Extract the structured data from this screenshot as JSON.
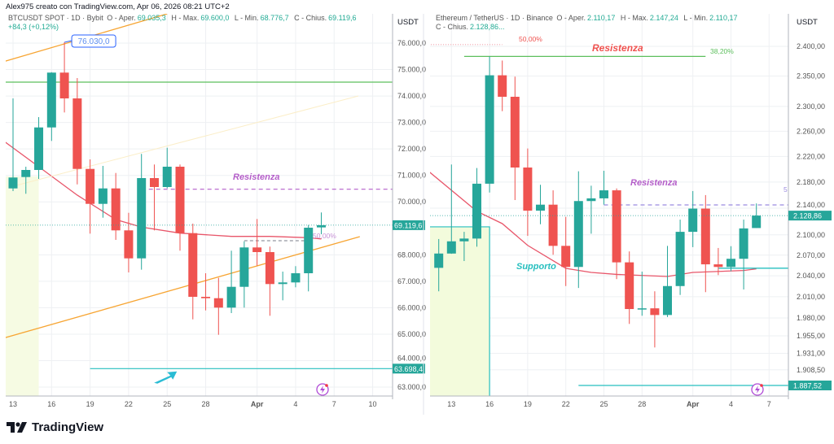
{
  "credit": "Alex975 creato con TradingView.com, Apr 06, 2026 08:21 UTC+2",
  "brand": {
    "name": "TradingView",
    "icon": "tradingview-logo-icon"
  },
  "colors": {
    "up": "#26a69a",
    "down": "#ef5350",
    "ma": "#e8566a",
    "grid": "#eef0f3",
    "axis": "#b2b5be",
    "resistance": "#b45ec9",
    "support": "#26bfbf",
    "trend": "#f7a533",
    "fib_green": "#5cbf5c"
  },
  "left_header": {
    "symbol": "BTCUSDT SPOT · 1D · Bybit",
    "o_label": "O - Aper.",
    "o": "69.035,3",
    "h_label": "H - Max.",
    "h": "69.600,0",
    "l_label": "L - Min.",
    "l": "68.776,7",
    "c_label": "C - Chius.",
    "c": "69.119,6",
    "change": "+84,3 (+0,12%)"
  },
  "right_header": {
    "symbol": "Ethereum / TetherUS · 1D · Binance",
    "o_label": "O - Aper.",
    "o": "2.110,17",
    "h_label": "H - Max.",
    "h": "2.147,24",
    "l_label": "L - Min.",
    "l": "2.110,17",
    "c_label": "C - Chius.",
    "c": "2.128,86..."
  },
  "chart_data": [
    {
      "type": "candlestick",
      "symbol": "BTCUSDT",
      "unit": "USDT",
      "interval": "1D",
      "y_scale": "linear",
      "ylim": [
        62700,
        77200
      ],
      "grid": true,
      "y_ticks": [
        "76.000,0",
        "75.000,0",
        "74.000,0",
        "73.000,0",
        "72.000,0",
        "71.000,0",
        "70.000,0",
        "68.000,0",
        "67.000,0",
        "66.000,0",
        "65.000,0",
        "64.000,0",
        "63.000,0"
      ],
      "x_ticks": [
        {
          "label": "13",
          "date": "2026-03-13"
        },
        {
          "label": "16",
          "date": "2026-03-16"
        },
        {
          "label": "19",
          "date": "2026-03-19"
        },
        {
          "label": "22",
          "date": "2026-03-22"
        },
        {
          "label": "25",
          "date": "2026-03-25"
        },
        {
          "label": "28",
          "date": "2026-03-28"
        },
        {
          "label": "Apr",
          "date": "2026-04-01"
        },
        {
          "label": "4",
          "date": "2026-04-04"
        },
        {
          "label": "7",
          "date": "2026-04-07"
        },
        {
          "label": "10",
          "date": "2026-04-10"
        }
      ],
      "candles": [
        {
          "date": "2026-03-13",
          "o": 70509,
          "h": 73910,
          "l": 70407,
          "c": 70920
        },
        {
          "date": "2026-03-14",
          "o": 70939,
          "h": 71329,
          "l": 70306,
          "c": 71206
        },
        {
          "date": "2026-03-15",
          "o": 71206,
          "h": 73203,
          "l": 70868,
          "c": 72813
        },
        {
          "date": "2026-03-16",
          "o": 72813,
          "h": 74900,
          "l": 72303,
          "c": 74885
        },
        {
          "date": "2026-03-17",
          "o": 74885,
          "h": 76030,
          "l": 73379,
          "c": 73910
        },
        {
          "date": "2026-03-18",
          "o": 73910,
          "h": 74679,
          "l": 70662,
          "c": 71246
        },
        {
          "date": "2026-03-19",
          "o": 71246,
          "h": 71606,
          "l": 68800,
          "c": 69925
        },
        {
          "date": "2026-03-20",
          "o": 69925,
          "h": 71360,
          "l": 69402,
          "c": 70509
        },
        {
          "date": "2026-03-21",
          "o": 70509,
          "h": 71093,
          "l": 68563,
          "c": 68923
        },
        {
          "date": "2026-03-22",
          "o": 68923,
          "h": 69587,
          "l": 67334,
          "c": 67866
        },
        {
          "date": "2026-03-23",
          "o": 67866,
          "h": 71812,
          "l": 67436,
          "c": 70899
        },
        {
          "date": "2026-03-24",
          "o": 70899,
          "h": 71412,
          "l": 68923,
          "c": 70561
        },
        {
          "date": "2026-03-25",
          "o": 70561,
          "h": 72045,
          "l": 70509,
          "c": 71329
        },
        {
          "date": "2026-03-26",
          "o": 71329,
          "h": 71412,
          "l": 68155,
          "c": 68819
        },
        {
          "date": "2026-03-27",
          "o": 68819,
          "h": 69178,
          "l": 65561,
          "c": 66412
        },
        {
          "date": "2026-03-28",
          "o": 66412,
          "h": 67303,
          "l": 65899,
          "c": 66360
        },
        {
          "date": "2026-03-29",
          "o": 66360,
          "h": 67128,
          "l": 64977,
          "c": 66004
        },
        {
          "date": "2026-03-30",
          "o": 66004,
          "h": 68155,
          "l": 65798,
          "c": 66790
        },
        {
          "date": "2026-03-31",
          "o": 66790,
          "h": 68511,
          "l": 66004,
          "c": 68278
        },
        {
          "date": "2026-04-01",
          "o": 68278,
          "h": 69353,
          "l": 67590,
          "c": 68102
        },
        {
          "date": "2026-04-02",
          "o": 68102,
          "h": 68309,
          "l": 65696,
          "c": 66895
        },
        {
          "date": "2026-04-03",
          "o": 66895,
          "h": 67365,
          "l": 66280,
          "c": 66956
        },
        {
          "date": "2026-04-04",
          "o": 66956,
          "h": 67571,
          "l": 66772,
          "c": 67303
        },
        {
          "date": "2026-04-05",
          "o": 67303,
          "h": 69126,
          "l": 66618,
          "c": 69024
        },
        {
          "date": "2026-04-06",
          "o": 69035.3,
          "h": 69600,
          "l": 68776.7,
          "c": 69119.6
        }
      ],
      "moving_average": [
        [
          "2026-03-12",
          72400
        ],
        [
          "2026-03-15",
          71329
        ],
        [
          "2026-03-18",
          70254
        ],
        [
          "2026-03-21",
          69332
        ],
        [
          "2026-03-23",
          69046
        ],
        [
          "2026-03-26",
          68819
        ],
        [
          "2026-03-30",
          68696
        ],
        [
          "2026-04-02",
          68696
        ],
        [
          "2026-04-05",
          68646
        ],
        [
          "2026-04-06",
          68600
        ]
      ],
      "annotations": {
        "upper_channel": {
          "from": [
            "2026-03-12",
            75262
          ],
          "to": [
            "2026-03-25",
            77106
          ]
        },
        "lower_channel": {
          "from": [
            "2026-03-12",
            64814
          ],
          "to": [
            "2026-04-09",
            68686
          ]
        },
        "green_level": 74525,
        "resistance": {
          "price": 70478,
          "from": "2026-03-23",
          "label": "Resistenza"
        },
        "fib_50": {
          "price": 68533,
          "from": "2026-03-31",
          "to": "2026-04-05",
          "label": "50,00%"
        },
        "support_line": {
          "price": 63698.4,
          "from": "2026-03-19"
        },
        "high_callout": {
          "date": "2026-03-17",
          "price": 76030,
          "label": "76.030,0"
        },
        "shaded_range": {
          "from": "2026-03-12",
          "to": "2026-03-15"
        },
        "arrow": {
          "date": "2026-03-25",
          "price": 63500
        },
        "last_price_tag": {
          "price": 69119.6,
          "label": "69.119,6"
        },
        "support_tag": {
          "price": 63698.4,
          "label": "63.698,4"
        }
      }
    },
    {
      "type": "candlestick",
      "symbol": "Ethereum / TetherUS",
      "unit": "USDT",
      "interval": "1D",
      "y_scale": "log",
      "ylim": [
        1870,
        2420
      ],
      "grid": true,
      "y_ticks": [
        "2.400,00",
        "2.350,00",
        "2.300,00",
        "2.260,00",
        "2.220,00",
        "2.180,00",
        "2.140,00",
        "2.100,00",
        "2.070,00",
        "2.040,00",
        "2.010,00",
        "1.980,00",
        "1.955,00",
        "1.931,00",
        "1.908,50"
      ],
      "x_ticks": [
        {
          "label": "13",
          "date": "2026-03-13"
        },
        {
          "label": "16",
          "date": "2026-03-16"
        },
        {
          "label": "19",
          "date": "2026-03-19"
        },
        {
          "label": "22",
          "date": "2026-03-22"
        },
        {
          "label": "25",
          "date": "2026-03-25"
        },
        {
          "label": "28",
          "date": "2026-03-28"
        },
        {
          "label": "Apr",
          "date": "2026-04-01"
        },
        {
          "label": "4",
          "date": "2026-04-04"
        },
        {
          "label": "7",
          "date": "2026-04-07"
        }
      ],
      "candles": [
        {
          "date": "2026-03-12",
          "o": 2051.5,
          "h": 2093.8,
          "l": 2017.7,
          "c": 2072.4
        },
        {
          "date": "2026-03-13",
          "o": 2072.4,
          "h": 2207.3,
          "l": 2072.0,
          "c": 2090.4
        },
        {
          "date": "2026-03-14",
          "o": 2090.4,
          "h": 2104.5,
          "l": 2061.4,
          "c": 2094.5
        },
        {
          "date": "2026-03-15",
          "o": 2094.5,
          "h": 2201.8,
          "l": 2082.5,
          "c": 2177.5
        },
        {
          "date": "2026-03-16",
          "o": 2177.5,
          "h": 2383.0,
          "l": 2164.0,
          "c": 2351.3
        },
        {
          "date": "2026-03-17",
          "o": 2351.3,
          "h": 2376.0,
          "l": 2292.3,
          "c": 2315.8
        },
        {
          "date": "2026-03-18",
          "o": 2315.8,
          "h": 2349.0,
          "l": 2152.4,
          "c": 2202.6
        },
        {
          "date": "2026-03-19",
          "o": 2202.6,
          "h": 2232.5,
          "l": 2098.5,
          "c": 2136.3
        },
        {
          "date": "2026-03-20",
          "o": 2136.3,
          "h": 2175.8,
          "l": 2115.8,
          "c": 2145.4
        },
        {
          "date": "2026-03-21",
          "o": 2145.4,
          "h": 2167.3,
          "l": 2070.6,
          "c": 2083.7
        },
        {
          "date": "2026-03-22",
          "o": 2083.7,
          "h": 2126.9,
          "l": 2025.2,
          "c": 2052.8
        },
        {
          "date": "2026-03-23",
          "o": 2052.8,
          "h": 2196.7,
          "l": 2022.5,
          "c": 2150.9
        },
        {
          "date": "2026-03-24",
          "o": 2150.9,
          "h": 2174.4,
          "l": 2101.7,
          "c": 2155.0
        },
        {
          "date": "2026-03-25",
          "o": 2155.0,
          "h": 2197.6,
          "l": 2145.4,
          "c": 2167.3
        },
        {
          "date": "2026-03-26",
          "o": 2167.3,
          "h": 2170.2,
          "l": 2035.2,
          "c": 2059.5
        },
        {
          "date": "2026-03-27",
          "o": 2059.5,
          "h": 2075.5,
          "l": 1971.6,
          "c": 1992.5
        },
        {
          "date": "2026-03-28",
          "o": 1992.5,
          "h": 2046.0,
          "l": 1983.1,
          "c": 1993.5
        },
        {
          "date": "2026-03-29",
          "o": 1993.5,
          "h": 2017.7,
          "l": 1939.0,
          "c": 1984.1
        },
        {
          "date": "2026-03-30",
          "o": 1984.1,
          "h": 2083.7,
          "l": 1981.2,
          "c": 2025.2
        },
        {
          "date": "2026-03-31",
          "o": 2025.2,
          "h": 2122.8,
          "l": 2012.5,
          "c": 2104.5
        },
        {
          "date": "2026-04-01",
          "o": 2104.5,
          "h": 2166.2,
          "l": 2081.8,
          "c": 2139.4
        },
        {
          "date": "2026-04-02",
          "o": 2139.4,
          "h": 2160.0,
          "l": 2016.5,
          "c": 2056.6
        },
        {
          "date": "2026-04-03",
          "o": 2056.6,
          "h": 2080.6,
          "l": 2041.0,
          "c": 2052.8
        },
        {
          "date": "2026-04-04",
          "o": 2052.8,
          "h": 2083.2,
          "l": 2046.7,
          "c": 2064.7
        },
        {
          "date": "2026-04-05",
          "o": 2064.7,
          "h": 2122.8,
          "l": 2020.3,
          "c": 2109.6
        },
        {
          "date": "2026-04-06",
          "o": 2110.17,
          "h": 2147.24,
          "l": 2110.17,
          "c": 2128.86
        }
      ],
      "moving_average": [
        [
          "2026-03-11",
          2200
        ],
        [
          "2026-03-15",
          2135.3
        ],
        [
          "2026-03-17",
          2116.8
        ],
        [
          "2026-03-19",
          2084.4
        ],
        [
          "2026-03-22",
          2050.8
        ],
        [
          "2026-03-24",
          2044.9
        ],
        [
          "2026-03-26",
          2042
        ],
        [
          "2026-03-30",
          2039
        ],
        [
          "2026-04-01",
          2044.9
        ],
        [
          "2026-04-05",
          2047.7
        ],
        [
          "2026-04-06",
          2050
        ]
      ],
      "annotations": {
        "fib_50": {
          "price": 2403,
          "from": "2026-03-11",
          "to": "2026-03-17",
          "label": "50,00%"
        },
        "green_level": {
          "price": 2383,
          "from": "2026-03-14",
          "to": "2026-04-02",
          "label": "Resistenza",
          "fib_label": "38,20%"
        },
        "resistance": {
          "price": 2145,
          "from": "2026-03-25",
          "label": "Resistenza",
          "edge_label": "5"
        },
        "support": {
          "price": 2051,
          "from": "2026-04-03",
          "label": "Supporto"
        },
        "box": {
          "from": "2026-03-11",
          "to": "2026-03-16",
          "top": 2112
        },
        "bottom_line": {
          "price": 1887.52,
          "from": "2026-03-23"
        },
        "last_price_tag": {
          "price": 2128.86,
          "label": "2.128,86"
        },
        "support_tag": {
          "price": 1887.52,
          "label": "1.887,52"
        }
      }
    }
  ]
}
